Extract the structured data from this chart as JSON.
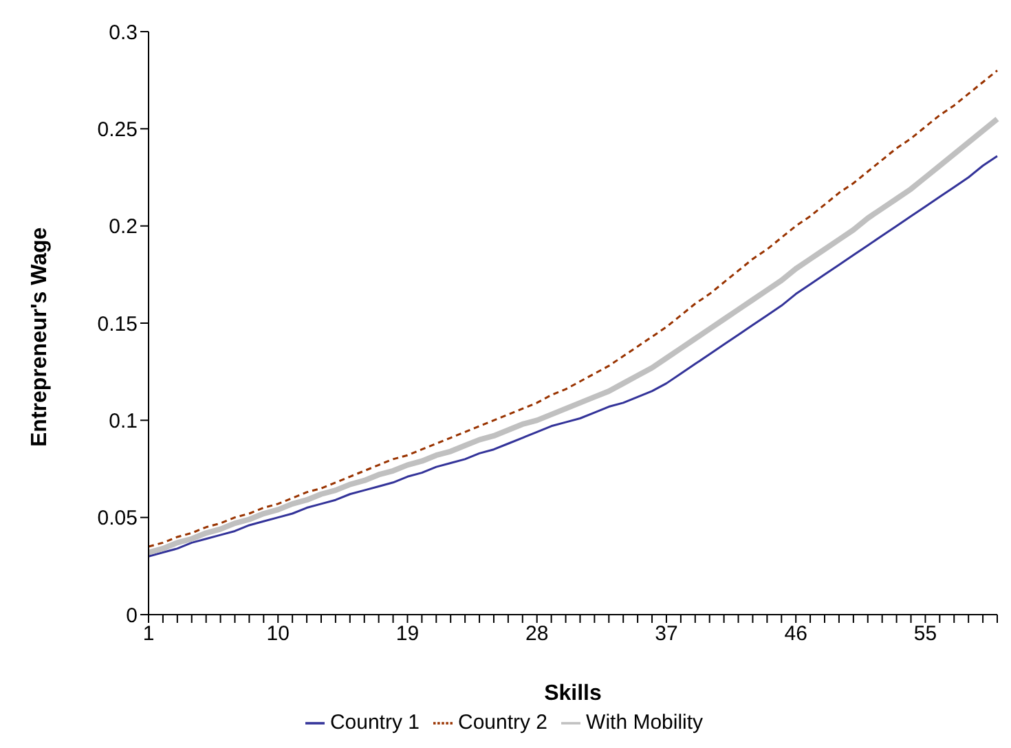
{
  "chart_data": {
    "type": "line",
    "xlabel": "Skills",
    "ylabel": "Entrepreneur's Wage",
    "categories": [
      "1",
      null,
      null,
      null,
      null,
      null,
      null,
      null,
      null,
      "10",
      null,
      null,
      null,
      null,
      null,
      null,
      null,
      null,
      "19",
      null,
      null,
      null,
      null,
      null,
      null,
      null,
      null,
      "28",
      null,
      null,
      null,
      null,
      null,
      null,
      null,
      null,
      "37",
      null,
      null,
      null,
      null,
      null,
      null,
      null,
      null,
      "46",
      null,
      null,
      null,
      null,
      null,
      null,
      null,
      null,
      "55",
      null,
      null,
      null,
      null,
      null
    ],
    "series": [
      {
        "name": "Country 1",
        "color": "#333399",
        "line_style": "solid",
        "values": [
          0.03,
          0.032,
          0.034,
          0.037,
          0.039,
          0.041,
          0.043,
          0.046,
          0.048,
          0.05,
          0.052,
          0.055,
          0.057,
          0.059,
          0.062,
          0.064,
          0.066,
          0.068,
          0.071,
          0.073,
          0.076,
          0.078,
          0.08,
          0.083,
          0.085,
          0.088,
          0.091,
          0.094,
          0.097,
          0.099,
          0.101,
          0.104,
          0.107,
          0.109,
          0.112,
          0.115,
          0.119,
          0.124,
          0.129,
          0.134,
          0.139,
          0.144,
          0.149,
          0.154,
          0.159,
          0.165,
          0.17,
          0.175,
          0.18,
          0.185,
          0.19,
          0.195,
          0.2,
          0.205,
          0.21,
          0.215,
          0.22,
          0.225,
          0.231,
          0.236
        ]
      },
      {
        "name": "Country 2",
        "color": "#993300",
        "line_style": "dashed",
        "values": [
          0.035,
          0.037,
          0.04,
          0.042,
          0.045,
          0.047,
          0.05,
          0.052,
          0.055,
          0.057,
          0.06,
          0.063,
          0.065,
          0.068,
          0.071,
          0.074,
          0.077,
          0.08,
          0.082,
          0.085,
          0.088,
          0.091,
          0.094,
          0.097,
          0.1,
          0.103,
          0.106,
          0.109,
          0.113,
          0.116,
          0.12,
          0.124,
          0.128,
          0.133,
          0.138,
          0.143,
          0.148,
          0.154,
          0.16,
          0.165,
          0.171,
          0.177,
          0.183,
          0.188,
          0.194,
          0.2,
          0.205,
          0.211,
          0.217,
          0.222,
          0.228,
          0.234,
          0.24,
          0.245,
          0.251,
          0.257,
          0.262,
          0.268,
          0.274,
          0.28
        ]
      },
      {
        "name": "With Mobility",
        "color": "#c0c0c0",
        "line_style": "solid",
        "values": [
          0.032,
          0.034,
          0.037,
          0.039,
          0.042,
          0.044,
          0.047,
          0.049,
          0.052,
          0.054,
          0.057,
          0.059,
          0.062,
          0.064,
          0.067,
          0.069,
          0.072,
          0.074,
          0.077,
          0.079,
          0.082,
          0.084,
          0.087,
          0.09,
          0.092,
          0.095,
          0.098,
          0.1,
          0.103,
          0.106,
          0.109,
          0.112,
          0.115,
          0.119,
          0.123,
          0.127,
          0.132,
          0.137,
          0.142,
          0.147,
          0.152,
          0.157,
          0.162,
          0.167,
          0.172,
          0.178,
          0.183,
          0.188,
          0.193,
          0.198,
          0.204,
          0.209,
          0.214,
          0.219,
          0.225,
          0.231,
          0.237,
          0.243,
          0.249,
          0.255
        ]
      }
    ],
    "ylim": [
      0,
      0.3
    ],
    "yticks": [
      0,
      0.05,
      0.1,
      0.15,
      0.2,
      0.25,
      0.3
    ],
    "grid": false,
    "legend": "bottom",
    "marker": "none"
  }
}
